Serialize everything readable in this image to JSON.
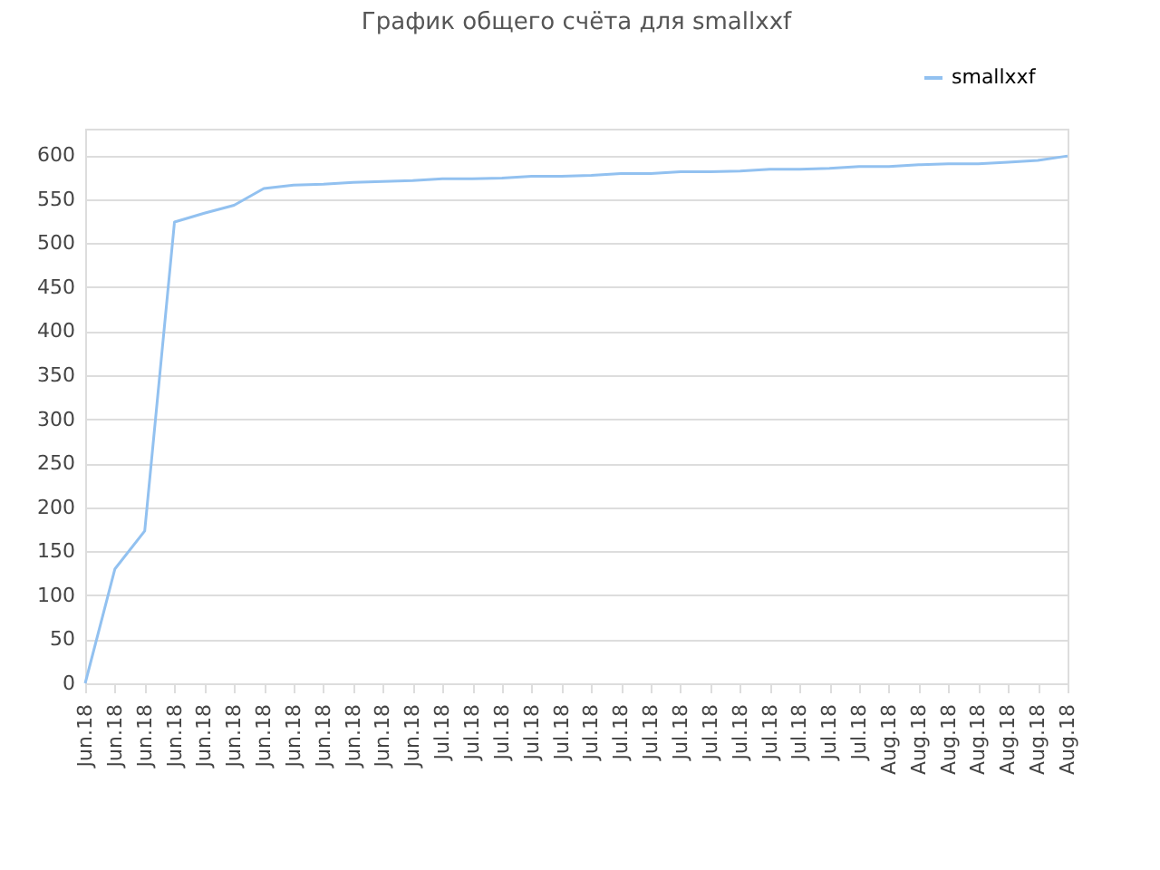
{
  "chart_data": {
    "type": "line",
    "title": "График общего счёта для smallxxf",
    "categories": [
      "Jun.18",
      "Jun.18",
      "Jun.18",
      "Jun.18",
      "Jun.18",
      "Jun.18",
      "Jun.18",
      "Jun.18",
      "Jun.18",
      "Jun.18",
      "Jun.18",
      "Jun.18",
      "Jul.18",
      "Jul.18",
      "Jul.18",
      "Jul.18",
      "Jul.18",
      "Jul.18",
      "Jul.18",
      "Jul.18",
      "Jul.18",
      "Jul.18",
      "Jul.18",
      "Jul.18",
      "Jul.18",
      "Jul.18",
      "Jul.18",
      "Aug.18",
      "Aug.18",
      "Aug.18",
      "Aug.18",
      "Aug.18",
      "Aug.18",
      "Aug.18"
    ],
    "series": [
      {
        "name": "smallxxf",
        "color": "#92c1f0",
        "values": [
          0,
          130,
          173,
          524,
          534,
          543,
          562,
          566,
          567,
          569,
          570,
          571,
          573,
          573,
          574,
          576,
          576,
          577,
          579,
          579,
          581,
          581,
          582,
          584,
          584,
          585,
          587,
          587,
          589,
          590,
          590,
          592,
          594,
          599
        ]
      }
    ],
    "ylim": [
      0,
      630
    ],
    "yticks": [
      0,
      50,
      100,
      150,
      200,
      250,
      300,
      350,
      400,
      450,
      500,
      550,
      600
    ],
    "grid": "y",
    "legend": "top right",
    "marker": "none",
    "line_style": "solid"
  }
}
